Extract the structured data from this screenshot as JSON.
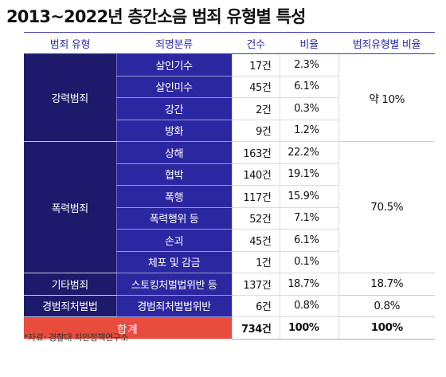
{
  "title": "2013~2022년 층간소음 범죄 유형별 특성",
  "headers": {
    "type": "범죄 유형",
    "offense": "죄명분류",
    "count": "건수",
    "ratio": "비율",
    "type_ratio": "범죄유형별 비율"
  },
  "groups": {
    "violent": {
      "label": "강력범죄",
      "ratio": "약 10%",
      "rows": [
        {
          "offense": "살인기수",
          "count": "17건",
          "ratio": "2.3%"
        },
        {
          "offense": "살인미수",
          "count": "45건",
          "ratio": "6.1%"
        },
        {
          "offense": "강간",
          "count": "2건",
          "ratio": "0.3%"
        },
        {
          "offense": "방화",
          "count": "9건",
          "ratio": "1.2%"
        }
      ]
    },
    "assault": {
      "label": "폭력범죄",
      "ratio": "70.5%",
      "rows": [
        {
          "offense": "상해",
          "count": "163건",
          "ratio": "22.2%"
        },
        {
          "offense": "협박",
          "count": "140건",
          "ratio": "19.1%"
        },
        {
          "offense": "폭행",
          "count": "117건",
          "ratio": "15.9%"
        },
        {
          "offense": "폭력행위 등",
          "count": "52건",
          "ratio": "7.1%"
        },
        {
          "offense": "손괴",
          "count": "45건",
          "ratio": "6.1%"
        },
        {
          "offense": "체포 및 감금",
          "count": "1건",
          "ratio": "0.1%"
        }
      ]
    },
    "other": {
      "label": "기타범죄",
      "ratio": "18.7%",
      "rows": [
        {
          "offense": "스토킹처벌법위반 등",
          "count": "137건",
          "ratio": "18.7%"
        }
      ]
    },
    "minor": {
      "label": "경범죄처벌법",
      "ratio": "0.8%",
      "rows": [
        {
          "offense": "경범죄처벌법위반",
          "count": "6건",
          "ratio": "0.8%"
        }
      ]
    }
  },
  "total": {
    "label": "합계",
    "count": "734건",
    "ratio": "100%",
    "type_ratio": "100%"
  },
  "source": "*자료: 경찰대 치안정책연구소",
  "colors": {
    "category_bg": "#1d1a6b",
    "subcategory_bg": "#2b27a0",
    "total_bg": "#e74c3c",
    "header_text": "#2a2aa6"
  }
}
